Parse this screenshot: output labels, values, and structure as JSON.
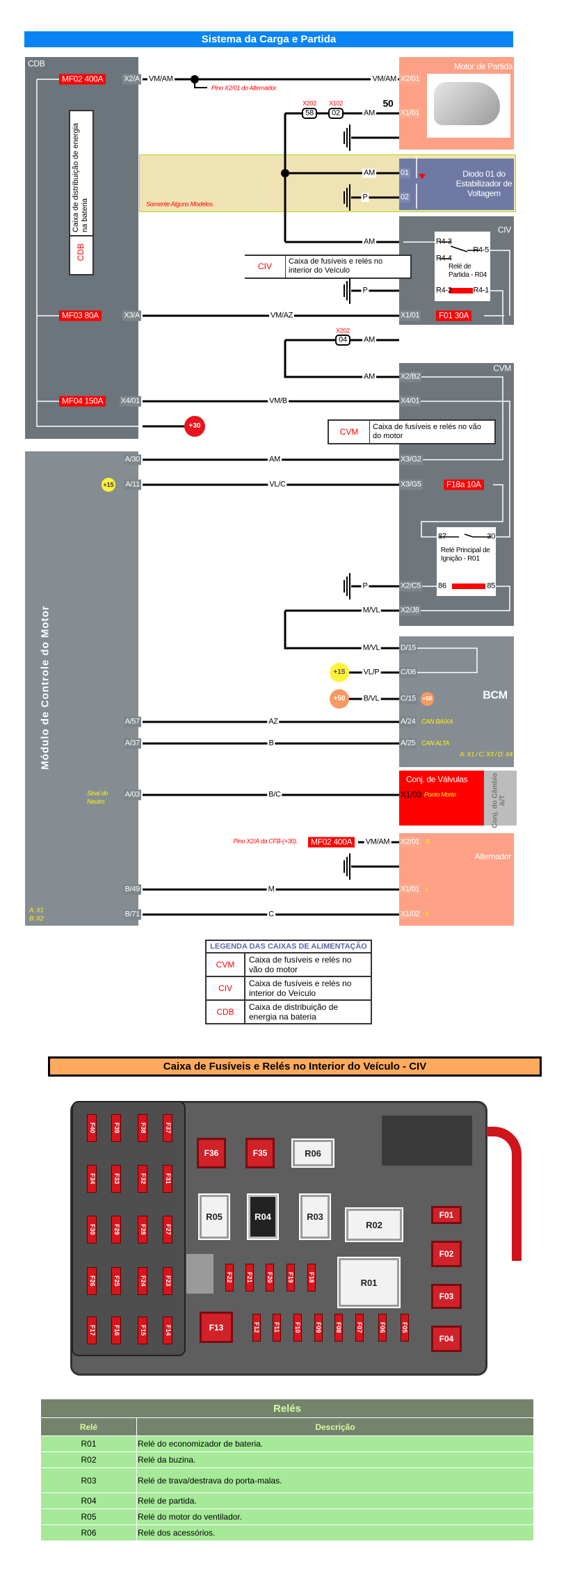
{
  "header": {
    "title": "Sistema da Carga e Partida"
  },
  "cdb": {
    "label": "CDB",
    "vertical_text": "Caixa de distribuição de energia na bateria",
    "vertical_code": "CDB",
    "fuses": [
      "MF02 400A",
      "MF03 80A",
      "MF04 150A"
    ],
    "pins": [
      "X2/A",
      "X3/A",
      "X4/01"
    ]
  },
  "starter": {
    "title": "Motor de Partida",
    "pins": [
      "X2/01",
      "X1/01"
    ],
    "terminal": "50"
  },
  "connectors": {
    "x202": "X202",
    "x102": "X102",
    "c58": "58",
    "c02": "02",
    "x202b": "X202",
    "c04": "04"
  },
  "notes": {
    "alt_pin": "Pino X2/01 do Alternador.",
    "some_models": "Somente Alguns Modelos.",
    "cfb_pin": "Pino X2/A da CFB-(+30)."
  },
  "diode": {
    "title": "Diodo 01 do Estabilizador de Voltagem",
    "pins": [
      "01",
      "02"
    ]
  },
  "civ": {
    "title": "CIV",
    "pins": [
      "X1/01"
    ],
    "fuse": "F01 30A",
    "relay": {
      "name": "Relé de Partida - R04",
      "pins": [
        "R4-3",
        "R4-5",
        "R4-4",
        "R4-2",
        "R4-1"
      ]
    },
    "callout_code": "CIV",
    "callout_text": "Caixa de fusíveis e relés no interior do Veículo"
  },
  "cvm": {
    "title": "CVM",
    "pins": [
      "X2/B2",
      "X4/01",
      "X3/G2",
      "X3/G5",
      "X2/C5",
      "X2/J8"
    ],
    "fuse": "F18a 10A",
    "relay": {
      "name": "Relé Principal de Ignição - R01",
      "pins": [
        "87",
        "30",
        "86",
        "85"
      ]
    },
    "callout_code": "CVM",
    "callout_text": "Caixa de fusíveis e relés no vão do motor"
  },
  "ecm": {
    "title": "Módulo de Controle do Motor",
    "pins": [
      "A/30",
      "A/11",
      "A/57",
      "A/37",
      "A/03",
      "B/49",
      "B/71"
    ],
    "neutral_signal": [
      "Sinal do",
      "Neutro"
    ],
    "connector_key": [
      "A: X1",
      "B: X2"
    ]
  },
  "bcm": {
    "title": "BCM",
    "pins": [
      "D/15",
      "C/06",
      "C/15",
      "A/24",
      "A/25"
    ],
    "can_low": "CAN BAIXA",
    "can_high": "CAN ALTA",
    "connector_key": "A: X1 / C: X3 / D: X4"
  },
  "valves": {
    "title": "Conj. de Válvulas",
    "pin": "X1/03",
    "pin_note": "Ponto Morto",
    "side": "Conj. do Câmbio A/T"
  },
  "alternator": {
    "title": "Alternador",
    "pins": [
      "X2/01",
      "X1/01",
      "X1/02"
    ],
    "terminals": [
      "B",
      "L",
      "F"
    ],
    "fuse": "MF02 400A"
  },
  "badges": {
    "plus30": "+30",
    "plus15": "+15",
    "plus50": "+50"
  },
  "wires": {
    "row1_left": "VM/AM",
    "row1_right": "VM/AM",
    "starter_signal": "AM",
    "diode_am": "AM",
    "diode_ground": "P",
    "civ_am": "AM",
    "civ_ground": "P",
    "mf03": "VM/AZ",
    "x202_am": "AM",
    "b2_am": "AM",
    "mf04": "VM/B",
    "a30": "AM",
    "a11": "VL/C",
    "c5_ground": "P",
    "j8": "M/VL",
    "d15": "M/VL",
    "c06": "VL/P",
    "c15": "B/VL",
    "a57": "AZ",
    "a37": "B",
    "a03": "B/C",
    "alt_b": "VM/AM",
    "b49": "M",
    "b71": "C"
  },
  "colors": {
    "banner": "#0a84f5",
    "fuse_red": "#ff0000",
    "starter": "#fda085",
    "diode": "#6e7aa3",
    "module_gray": "#6f777d"
  },
  "legend": {
    "title": "LEGENDA DAS CAIXAS DE ALIMENTAÇÃO",
    "rows": [
      {
        "code": "CVM",
        "text": "Caixa de fusíveis e relés no vão do motor"
      },
      {
        "code": "CIV",
        "text": "Caixa de fusíveis e relés no interior do Veículo"
      },
      {
        "code": "CDB",
        "text": "Caixa de distribuição de energia na bateria"
      }
    ]
  },
  "fusebox": {
    "title": "Caixa de Fusíveis e Relés no Interior do Veículo - CIV",
    "components": [
      "F40",
      "F39",
      "F38",
      "F37",
      "F34",
      "F33",
      "F32",
      "F31",
      "F30",
      "F29",
      "F28",
      "F27",
      "F26",
      "F25",
      "F24",
      "F23",
      "F17",
      "F16",
      "F15",
      "F14",
      "F36",
      "F35",
      "R06",
      "R05",
      "R04",
      "R03",
      "R02",
      "R01",
      "F22",
      "F21",
      "F20",
      "F19",
      "F18",
      "F12",
      "F11",
      "F10",
      "F09",
      "F08",
      "F07",
      "F06",
      "F05",
      "F13",
      "F01",
      "F02",
      "F03",
      "F04"
    ]
  },
  "relay_table": {
    "title": "Relés",
    "headers": [
      "Relé",
      "Descrição"
    ],
    "rows": [
      {
        "relay": "R01",
        "description": "Relé do economizador de bateria."
      },
      {
        "relay": "R02",
        "description": "Relé da buzina."
      },
      {
        "relay": "R03",
        "description": "Relé de trava/destrava do porta-malas."
      },
      {
        "relay": "R04",
        "description": "Relé de partida."
      },
      {
        "relay": "R05",
        "description": "Relé do motor do ventilador."
      },
      {
        "relay": "R06",
        "description": "Relé dos acessórios."
      }
    ]
  }
}
